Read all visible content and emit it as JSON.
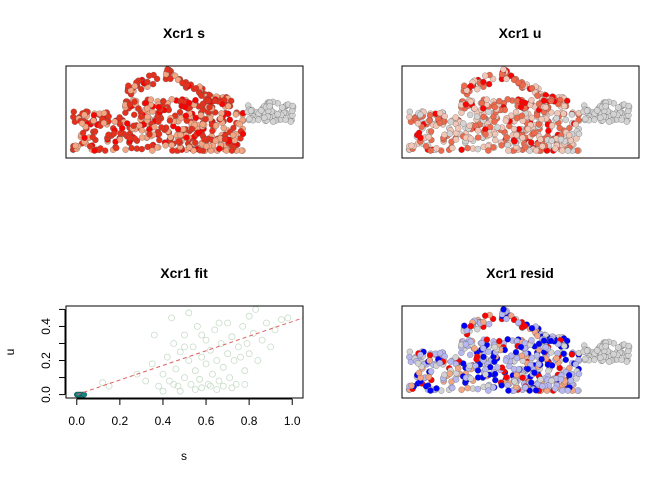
{
  "chart_data": [
    {
      "type": "scatter",
      "title": "Xcr1 s",
      "xlabel": "",
      "ylabel": "",
      "axes_shown": false,
      "color_scale": [
        "#d3d3d3",
        "#f4a582",
        "#e6301b",
        "#ff0000"
      ],
      "description_of_values": "spliced expression per cell, low values gray, high values red"
    },
    {
      "type": "scatter",
      "title": "Xcr1 u",
      "xlabel": "",
      "ylabel": "",
      "axes_shown": false,
      "color_scale": [
        "#d3d3d3",
        "#f2c6b6",
        "#ef6a4c",
        "#ff0000"
      ]
    },
    {
      "type": "scatter",
      "title": "Xcr1 fit",
      "xlabel": "s",
      "ylabel": "u",
      "xlim": [
        -0.05,
        1.05
      ],
      "ylim": [
        -0.02,
        0.52
      ],
      "xticks": [
        "0.0",
        "0.2",
        "0.4",
        "0.6",
        "0.8",
        "1.0"
      ],
      "yticks": [
        "0.0",
        "0.2",
        "0.4"
      ],
      "fit_line": {
        "x": [
          0.0,
          1.05
        ],
        "y": [
          0.0,
          0.45
        ],
        "color": "#e06060",
        "style": "dashed"
      },
      "point_color": "#c8dcc8",
      "zero_cluster_color": "#1a8080",
      "series": [
        {
          "points_zero_cluster": [
            [
              0.0,
              0.0
            ],
            [
              0.01,
              0.0
            ],
            [
              0.02,
              0.0
            ],
            [
              0.03,
              0.0
            ],
            [
              0.015,
              0.0
            ],
            [
              0.025,
              0.0
            ],
            [
              0.035,
              0.0
            ],
            [
              0.005,
              0.0
            ]
          ]
        },
        {
          "points": [
            [
              0.12,
              0.07
            ],
            [
              0.15,
              0.05
            ],
            [
              0.28,
              0.12
            ],
            [
              0.32,
              0.08
            ],
            [
              0.35,
              0.18
            ],
            [
              0.38,
              0.05
            ],
            [
              0.4,
              0.12
            ],
            [
              0.42,
              0.22
            ],
            [
              0.43,
              0.08
            ],
            [
              0.45,
              0.3
            ],
            [
              0.46,
              0.15
            ],
            [
              0.47,
              0.05
            ],
            [
              0.48,
              0.25
            ],
            [
              0.5,
              0.1
            ],
            [
              0.5,
              0.35
            ],
            [
              0.52,
              0.2
            ],
            [
              0.53,
              0.06
            ],
            [
              0.54,
              0.28
            ],
            [
              0.55,
              0.14
            ],
            [
              0.56,
              0.4
            ],
            [
              0.57,
              0.09
            ],
            [
              0.58,
              0.22
            ],
            [
              0.6,
              0.18
            ],
            [
              0.6,
              0.32
            ],
            [
              0.61,
              0.06
            ],
            [
              0.62,
              0.26
            ],
            [
              0.63,
              0.12
            ],
            [
              0.64,
              0.38
            ],
            [
              0.65,
              0.2
            ],
            [
              0.66,
              0.08
            ],
            [
              0.67,
              0.3
            ],
            [
              0.68,
              0.16
            ],
            [
              0.7,
              0.24
            ],
            [
              0.7,
              0.42
            ],
            [
              0.71,
              0.1
            ],
            [
              0.72,
              0.34
            ],
            [
              0.73,
              0.2
            ],
            [
              0.74,
              0.06
            ],
            [
              0.75,
              0.28
            ],
            [
              0.76,
              0.22
            ],
            [
              0.77,
              0.4
            ],
            [
              0.78,
              0.14
            ],
            [
              0.79,
              0.3
            ],
            [
              0.8,
              0.46
            ],
            [
              0.8,
              0.24
            ],
            [
              0.82,
              0.36
            ],
            [
              0.83,
              0.5
            ],
            [
              0.84,
              0.2
            ],
            [
              0.86,
              0.32
            ],
            [
              0.88,
              0.42
            ],
            [
              0.9,
              0.28
            ],
            [
              0.92,
              0.38
            ],
            [
              0.95,
              0.44
            ],
            [
              0.98,
              0.45
            ],
            [
              0.44,
              0.45
            ],
            [
              0.52,
              0.48
            ],
            [
              0.36,
              0.35
            ],
            [
              0.4,
              0.02
            ],
            [
              0.55,
              0.03
            ],
            [
              0.65,
              0.03
            ],
            [
              0.72,
              0.04
            ],
            [
              0.48,
              0.02
            ],
            [
              0.58,
              0.04
            ],
            [
              0.62,
              0.05
            ],
            [
              0.45,
              0.06
            ],
            [
              0.68,
              0.05
            ],
            [
              0.78,
              0.06
            ],
            [
              0.5,
              0.28
            ],
            [
              0.58,
              0.35
            ],
            [
              0.66,
              0.42
            ]
          ]
        }
      ]
    },
    {
      "type": "scatter",
      "title": "Xcr1 resid",
      "xlabel": "",
      "ylabel": "",
      "axes_shown": false,
      "color_scale": [
        "#0000ff",
        "#b8b8f0",
        "#d3d3d3",
        "#f4a582",
        "#ff0000"
      ]
    }
  ]
}
